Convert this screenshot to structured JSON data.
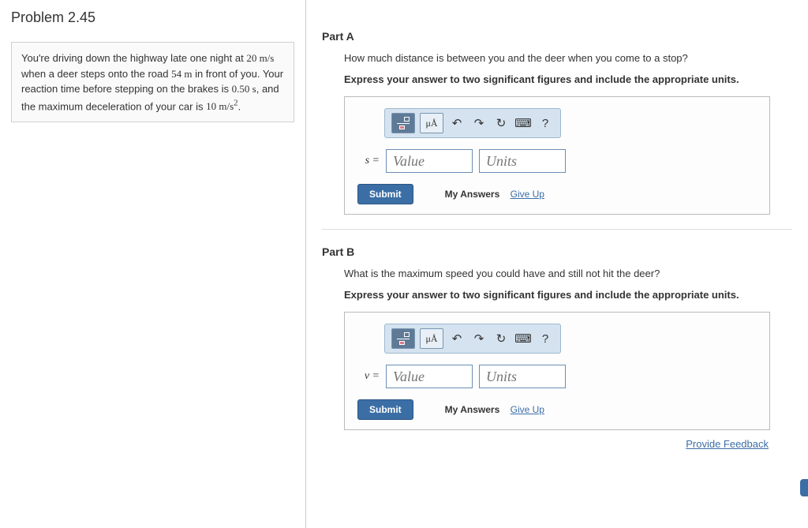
{
  "problem": {
    "title": "Problem 2.45",
    "text_pre": "You're driving down the highway late one night at ",
    "v0": "20 m/s",
    "text_mid1": " when a deer steps onto the road ",
    "dist": "54 m",
    "text_mid2": " in front of you. Your reaction time before stepping on the brakes is ",
    "rt": "0.50 s",
    "text_mid3": ", and the maximum deceleration of your car is ",
    "decel": "10 m/s",
    "text_end": "."
  },
  "partA": {
    "title": "Part A",
    "question": "How much distance is between you and the deer when you come to a stop?",
    "instruction": "Express your answer to two significant figures and include the appropriate units.",
    "var": "s =",
    "value_ph": "Value",
    "units_ph": "Units",
    "units_btn": "μÅ"
  },
  "partB": {
    "title": "Part B",
    "question": "What is the maximum speed you could have and still not hit the deer?",
    "instruction": "Express your answer to two significant figures and include the appropriate units.",
    "var": "v =",
    "value_ph": "Value",
    "units_ph": "Units",
    "units_btn": "μÅ"
  },
  "buttons": {
    "submit": "Submit",
    "my_answers": "My Answers",
    "give_up": "Give Up",
    "feedback": "Provide Feedback",
    "help": "?"
  }
}
